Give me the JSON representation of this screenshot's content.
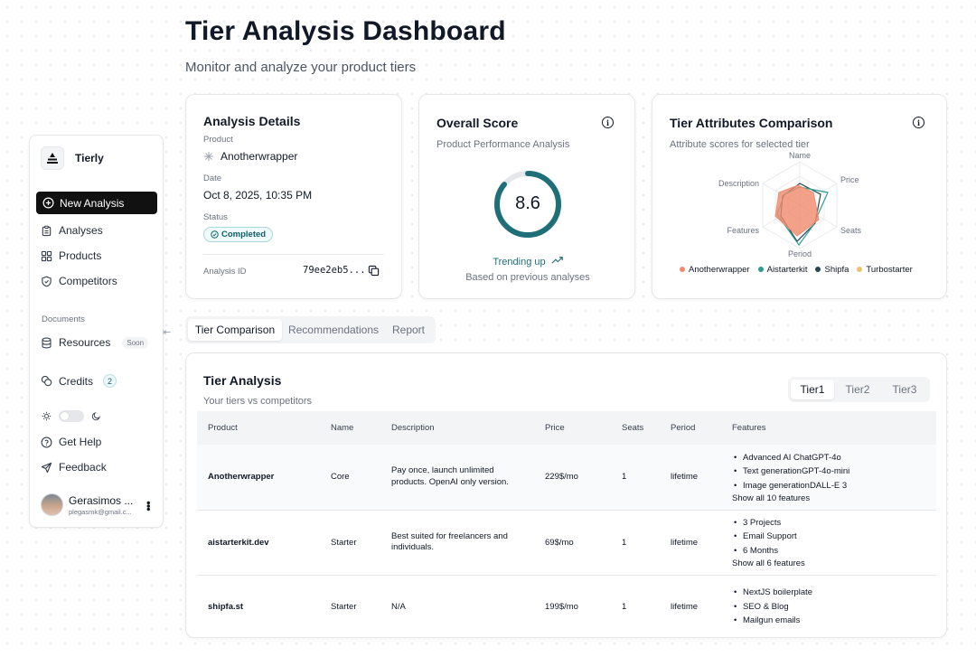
{
  "header": {
    "title": "Tier Analysis Dashboard",
    "subtitle": "Monitor and analyze your product tiers"
  },
  "sidebar": {
    "brand": "Tierly",
    "new_analysis": "New Analysis",
    "items": [
      {
        "label": "Analyses",
        "icon": "clipboard-icon"
      },
      {
        "label": "Products",
        "icon": "grid-icon"
      },
      {
        "label": "Competitors",
        "icon": "shield-icon"
      }
    ],
    "documents_label": "Documents",
    "resources": {
      "label": "Resources",
      "badge": "Soon"
    },
    "credits": {
      "label": "Credits",
      "count": "2"
    },
    "help": "Get Help",
    "feedback": "Feedback",
    "user": {
      "name": "Gerasimos ...",
      "email": "plegasmk@gmail.c..."
    }
  },
  "analysis_details": {
    "title": "Analysis Details",
    "product_label": "Product",
    "product": "Anotherwrapper",
    "date_label": "Date",
    "date": "Oct 8, 2025, 10:35 PM",
    "status_label": "Status",
    "status": "Completed",
    "id_label": "Analysis ID",
    "id": "79ee2eb5..."
  },
  "overall_score": {
    "title": "Overall Score",
    "subtitle": "Product Performance Analysis",
    "score": "8.6",
    "score_value": 8.6,
    "score_max": 10,
    "trend": "Trending up",
    "note": "Based on previous analyses",
    "accent": "#1f6f78"
  },
  "radar": {
    "title": "Tier Attributes Comparison",
    "subtitle": "Attribute scores for selected tier",
    "axes": [
      "Name",
      "Price",
      "Seats",
      "Period",
      "Features",
      "Description"
    ],
    "legend": [
      {
        "name": "Anotherwrapper",
        "color": "#f08a6c"
      },
      {
        "name": "Aistarterkit",
        "color": "#2a9d8f"
      },
      {
        "name": "Shipfa",
        "color": "#264653"
      },
      {
        "name": "Turbostarter",
        "color": "#e9c46a"
      }
    ]
  },
  "tabs": [
    "Tier Comparison",
    "Recommendations",
    "Report"
  ],
  "tier_analysis": {
    "title": "Tier Analysis",
    "subtitle": "Your tiers vs competitors",
    "tiers": [
      "Tier1",
      "Tier2",
      "Tier3"
    ],
    "columns": [
      "Product",
      "Name",
      "Description",
      "Price",
      "Seats",
      "Period",
      "Features"
    ],
    "rows": [
      {
        "product": "Anotherwrapper",
        "name": "Core",
        "description": "Pay once, launch unlimited products. OpenAI only version.",
        "price": "229$/mo",
        "seats": "1",
        "period": "lifetime",
        "features": [
          "Advanced AI ChatGPT-4o",
          "Text generationGPT-4o-mini",
          "Image generationDALL-E 3"
        ],
        "show_all": "Show all 10 features"
      },
      {
        "product": "aistarterkit.dev",
        "name": "Starter",
        "description": "Best suited for freelancers and individuals.",
        "price": "69$/mo",
        "seats": "1",
        "period": "lifetime",
        "features": [
          "3 Projects",
          "Email Support",
          "6 Months"
        ],
        "show_all": "Show all 6 features"
      },
      {
        "product": "shipfa.st",
        "name": "Starter",
        "description": "N/A",
        "price": "199$/mo",
        "seats": "1",
        "period": "lifetime",
        "features": [
          "NextJS boilerplate",
          "SEO & Blog",
          "Mailgun emails"
        ],
        "show_all": ""
      }
    ]
  }
}
